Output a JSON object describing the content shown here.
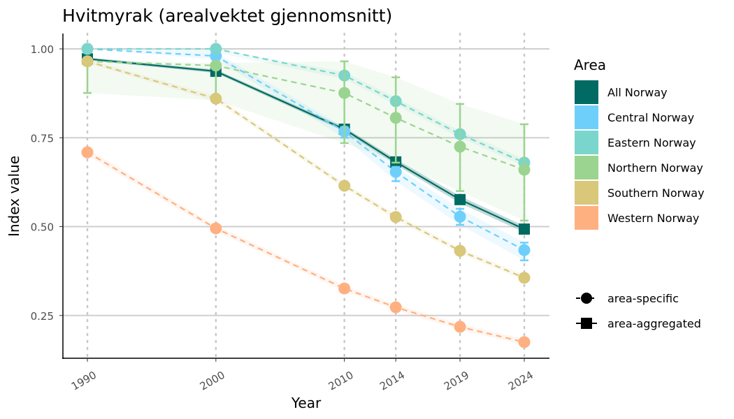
{
  "chart_data": {
    "type": "line",
    "title": "Hvitmyrak (arealvektet gjennomsnitt)",
    "xlabel": "Year",
    "ylabel": "Index value",
    "x": [
      1990,
      2000,
      2010,
      2014,
      2019,
      2024
    ],
    "xticks": [
      "1990",
      "2000",
      "2010",
      "2014",
      "2019",
      "2024"
    ],
    "ylim": [
      0.14,
      1.04
    ],
    "yticks": [
      {
        "v": 0.25,
        "label": "0.25"
      },
      {
        "v": 0.5,
        "label": "0.50"
      },
      {
        "v": 0.75,
        "label": "0.75"
      },
      {
        "v": 1.0,
        "label": "1.00"
      }
    ],
    "legend_title": "Area",
    "legend_position": "right",
    "series": [
      {
        "name": "All Norway",
        "color": "#006A63",
        "kind": "area-aggregated",
        "values": [
          0.972,
          0.937,
          0.774,
          0.682,
          0.576,
          0.493
        ],
        "lower": [
          0.968,
          0.932,
          0.768,
          0.674,
          0.566,
          0.484
        ],
        "upper": [
          0.976,
          0.942,
          0.78,
          0.69,
          0.586,
          0.502
        ]
      },
      {
        "name": "Central Norway",
        "color": "#6FCFFB",
        "kind": "area-specific",
        "values": [
          1.0,
          0.98,
          0.768,
          0.654,
          0.528,
          0.434
        ],
        "lower": [
          1.0,
          0.97,
          0.75,
          0.628,
          0.505,
          0.405
        ],
        "upper": [
          1.0,
          0.99,
          0.78,
          0.668,
          0.55,
          0.455
        ]
      },
      {
        "name": "Eastern Norway",
        "color": "#7AD6CC",
        "kind": "area-specific",
        "values": [
          1.0,
          1.0,
          0.925,
          0.853,
          0.76,
          0.68
        ],
        "lower": [
          1.0,
          0.99,
          0.915,
          0.843,
          0.75,
          0.67
        ],
        "upper": [
          1.0,
          1.0,
          0.935,
          0.863,
          0.77,
          0.69
        ]
      },
      {
        "name": "Northern Norway",
        "color": "#9BD490",
        "kind": "area-specific",
        "values": [
          0.965,
          0.953,
          0.876,
          0.806,
          0.725,
          0.66
        ],
        "lower": [
          0.876,
          0.855,
          0.735,
          0.68,
          0.6,
          0.517
        ],
        "upper": [
          0.97,
          0.96,
          0.965,
          0.92,
          0.845,
          0.788
        ]
      },
      {
        "name": "Southern Norway",
        "color": "#D9C77A",
        "kind": "area-specific",
        "values": [
          0.965,
          0.86,
          0.615,
          0.527,
          0.432,
          0.356
        ],
        "lower": [
          0.96,
          0.852,
          0.607,
          0.519,
          0.424,
          0.348
        ],
        "upper": [
          0.97,
          0.868,
          0.623,
          0.535,
          0.44,
          0.364
        ]
      },
      {
        "name": "Western Norway",
        "color": "#FFB080",
        "kind": "area-specific",
        "values": [
          0.709,
          0.495,
          0.326,
          0.273,
          0.218,
          0.175
        ],
        "lower": [
          0.7,
          0.487,
          0.318,
          0.265,
          0.21,
          0.167
        ],
        "upper": [
          0.718,
          0.503,
          0.334,
          0.281,
          0.226,
          0.183
        ]
      }
    ],
    "shape_legend": [
      "area-specific",
      "area-aggregated"
    ]
  }
}
